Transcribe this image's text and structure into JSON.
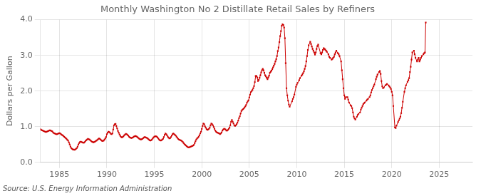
{
  "chart_data": {
    "type": "line",
    "title": "Monthly Washington No 2 Distillate Retail Sales by Refiners",
    "ylabel": "Dollars per Gallon",
    "source": "Source: U.S. Energy Information Administration",
    "color": "#cc0000",
    "marker": "square",
    "grid": true,
    "xlim": [
      1983.0,
      2028.5
    ],
    "xticks": [
      1985,
      1990,
      1995,
      2000,
      2005,
      2010,
      2015,
      2020,
      2025
    ],
    "ylim": [
      0.0,
      4.0
    ],
    "yticks": [
      {
        "value": 0.0,
        "label": "0.0"
      },
      {
        "value": 1.0,
        "label": "1.0"
      },
      {
        "value": 2.0,
        "label": "2.0"
      },
      {
        "value": 3.0,
        "label": "3.0"
      },
      {
        "value": 4.0,
        "label": "4.0"
      }
    ],
    "x": [
      1983.0,
      1983.083,
      1983.167,
      1983.25,
      1983.333,
      1983.417,
      1983.5,
      1983.583,
      1983.667,
      1983.75,
      1983.833,
      1983.917,
      1984.0,
      1984.083,
      1984.167,
      1984.25,
      1984.333,
      1984.417,
      1984.5,
      1984.583,
      1984.667,
      1984.75,
      1984.833,
      1984.917,
      1985.0,
      1985.083,
      1985.167,
      1985.25,
      1985.333,
      1985.417,
      1985.5,
      1985.583,
      1985.667,
      1985.75,
      1985.833,
      1985.917,
      1986.0,
      1986.083,
      1986.167,
      1986.25,
      1986.333,
      1986.417,
      1986.5,
      1986.583,
      1986.667,
      1986.75,
      1986.833,
      1986.917,
      1987.0,
      1987.083,
      1987.167,
      1987.25,
      1987.333,
      1987.417,
      1987.5,
      1987.583,
      1987.667,
      1987.75,
      1987.833,
      1987.917,
      1988.0,
      1988.083,
      1988.167,
      1988.25,
      1988.333,
      1988.417,
      1988.5,
      1988.583,
      1988.667,
      1988.75,
      1988.833,
      1988.917,
      1989.0,
      1989.083,
      1989.167,
      1989.25,
      1989.333,
      1989.417,
      1989.5,
      1989.583,
      1989.667,
      1989.75,
      1989.833,
      1989.917,
      1990.0,
      1990.083,
      1990.167,
      1990.25,
      1990.333,
      1990.417,
      1990.5,
      1990.583,
      1990.667,
      1990.75,
      1990.833,
      1990.917,
      1991.0,
      1991.083,
      1991.167,
      1991.25,
      1991.333,
      1991.417,
      1991.5,
      1991.583,
      1991.667,
      1991.75,
      1991.833,
      1991.917,
      1992.0,
      1992.083,
      1992.167,
      1992.25,
      1992.333,
      1992.417,
      1992.5,
      1992.583,
      1992.667,
      1992.75,
      1992.833,
      1992.917,
      1993.0,
      1993.083,
      1993.167,
      1993.25,
      1993.333,
      1993.417,
      1993.5,
      1993.583,
      1993.667,
      1993.75,
      1993.833,
      1993.917,
      1994.0,
      1994.083,
      1994.167,
      1994.25,
      1994.333,
      1994.417,
      1994.5,
      1994.583,
      1994.667,
      1994.75,
      1994.833,
      1994.917,
      1995.0,
      1995.083,
      1995.167,
      1995.25,
      1995.333,
      1995.417,
      1995.5,
      1995.583,
      1995.667,
      1995.75,
      1995.833,
      1995.917,
      1996.0,
      1996.083,
      1996.167,
      1996.25,
      1996.333,
      1996.417,
      1996.5,
      1996.583,
      1996.667,
      1996.75,
      1996.833,
      1996.917,
      1997.0,
      1997.083,
      1997.167,
      1997.25,
      1997.333,
      1997.417,
      1997.5,
      1997.583,
      1997.667,
      1997.75,
      1997.833,
      1997.917,
      1998.0,
      1998.083,
      1998.167,
      1998.25,
      1998.333,
      1998.417,
      1998.5,
      1998.583,
      1998.667,
      1998.75,
      1998.833,
      1998.917,
      1999.0,
      1999.083,
      1999.167,
      1999.25,
      1999.333,
      1999.417,
      1999.5,
      1999.583,
      1999.667,
      1999.75,
      1999.833,
      1999.917,
      2000.0,
      2000.083,
      2000.167,
      2000.25,
      2000.333,
      2000.417,
      2000.5,
      2000.583,
      2000.667,
      2000.75,
      2000.833,
      2000.917,
      2001.0,
      2001.083,
      2001.167,
      2001.25,
      2001.333,
      2001.417,
      2001.5,
      2001.583,
      2001.667,
      2001.75,
      2001.833,
      2001.917,
      2002.0,
      2002.083,
      2002.167,
      2002.25,
      2002.333,
      2002.417,
      2002.5,
      2002.583,
      2002.667,
      2002.75,
      2002.833,
      2002.917,
      2003.0,
      2003.083,
      2003.167,
      2003.25,
      2003.333,
      2003.417,
      2003.5,
      2003.583,
      2003.667,
      2003.75,
      2003.833,
      2003.917,
      2004.0,
      2004.083,
      2004.167,
      2004.25,
      2004.333,
      2004.417,
      2004.5,
      2004.583,
      2004.667,
      2004.75,
      2004.833,
      2004.917,
      2005.0,
      2005.083,
      2005.167,
      2005.25,
      2005.333,
      2005.417,
      2005.5,
      2005.583,
      2005.667,
      2005.75,
      2005.833,
      2005.917,
      2006.0,
      2006.083,
      2006.167,
      2006.25,
      2006.333,
      2006.417,
      2006.5,
      2006.583,
      2006.667,
      2006.75,
      2006.833,
      2006.917,
      2007.0,
      2007.083,
      2007.167,
      2007.25,
      2007.333,
      2007.417,
      2007.5,
      2007.583,
      2007.667,
      2007.75,
      2007.833,
      2007.917,
      2008.0,
      2008.083,
      2008.167,
      2008.25,
      2008.333,
      2008.417,
      2008.5,
      2008.583,
      2008.667,
      2008.75,
      2008.833,
      2008.917,
      2009.0,
      2009.083,
      2009.167,
      2009.25,
      2009.5,
      2009.583,
      2009.667,
      2009.75,
      2009.917,
      2010.0,
      2010.083,
      2010.25,
      2010.333,
      2010.5,
      2010.583,
      2010.667,
      2010.75,
      2010.833,
      2010.917,
      2011.0,
      2011.083,
      2011.167,
      2011.25,
      2011.417,
      2011.5,
      2011.583,
      2011.667,
      2011.75,
      2011.833,
      2011.917,
      2012.0,
      2012.083,
      2012.167,
      2012.25,
      2012.5,
      2012.583,
      2012.667,
      2012.75,
      2012.833,
      2012.917,
      2013.0,
      2013.083,
      2013.167,
      2013.333,
      2013.417,
      2013.5,
      2013.667,
      2013.75,
      2013.833,
      2013.917,
      2014.0,
      2014.083,
      2014.167,
      2014.333,
      2014.417,
      2014.5,
      2014.667,
      2014.75,
      2014.833,
      2014.917,
      2015.0,
      2015.083,
      2015.167,
      2015.333,
      2015.417,
      2015.5,
      2015.667,
      2015.75,
      2015.833,
      2015.917,
      2016.0,
      2016.083,
      2016.167,
      2016.333,
      2016.417,
      2016.5,
      2016.667,
      2016.75,
      2016.833,
      2016.917,
      2017.0,
      2017.083,
      2017.167,
      2017.333,
      2017.417,
      2017.5,
      2017.667,
      2017.75,
      2017.833,
      2017.917,
      2018.0,
      2018.083,
      2018.167,
      2018.333,
      2018.417,
      2018.5,
      2018.667,
      2018.75,
      2018.833,
      2018.917,
      2019.0,
      2019.083,
      2019.167,
      2019.333,
      2019.417,
      2019.5,
      2019.667,
      2019.75,
      2019.833,
      2019.917,
      2020.0,
      2020.083,
      2020.167,
      2020.333,
      2020.417,
      2020.5,
      2020.667,
      2020.75,
      2020.833,
      2020.917,
      2021.0,
      2021.083,
      2021.167,
      2021.333,
      2021.417,
      2021.5,
      2021.667,
      2021.75,
      2021.833,
      2021.917,
      2022.0,
      2022.083,
      2022.167,
      2022.333,
      2022.417,
      2022.5,
      2022.667,
      2022.75,
      2022.833,
      2022.917,
      2023.0,
      2023.083,
      2023.167,
      2023.333,
      2023.417,
      2023.5,
      2023.583
    ],
    "values": [
      0.93,
      0.91,
      0.9,
      0.89,
      0.88,
      0.87,
      0.86,
      0.85,
      0.86,
      0.87,
      0.88,
      0.89,
      0.9,
      0.89,
      0.88,
      0.87,
      0.84,
      0.82,
      0.81,
      0.8,
      0.79,
      0.79,
      0.8,
      0.81,
      0.82,
      0.81,
      0.79,
      0.77,
      0.76,
      0.74,
      0.72,
      0.7,
      0.68,
      0.66,
      0.63,
      0.61,
      0.56,
      0.5,
      0.44,
      0.4,
      0.38,
      0.36,
      0.36,
      0.35,
      0.36,
      0.38,
      0.4,
      0.44,
      0.5,
      0.54,
      0.57,
      0.58,
      0.57,
      0.56,
      0.55,
      0.55,
      0.57,
      0.6,
      0.62,
      0.64,
      0.66,
      0.65,
      0.64,
      0.62,
      0.6,
      0.58,
      0.57,
      0.56,
      0.57,
      0.58,
      0.6,
      0.61,
      0.63,
      0.65,
      0.67,
      0.66,
      0.64,
      0.62,
      0.6,
      0.6,
      0.61,
      0.64,
      0.67,
      0.71,
      0.79,
      0.83,
      0.86,
      0.85,
      0.83,
      0.8,
      0.79,
      0.81,
      0.92,
      1.04,
      1.07,
      1.08,
      1.02,
      0.95,
      0.88,
      0.83,
      0.78,
      0.74,
      0.71,
      0.7,
      0.71,
      0.73,
      0.76,
      0.78,
      0.8,
      0.79,
      0.77,
      0.75,
      0.72,
      0.7,
      0.69,
      0.68,
      0.69,
      0.7,
      0.72,
      0.73,
      0.74,
      0.73,
      0.72,
      0.7,
      0.68,
      0.66,
      0.65,
      0.64,
      0.65,
      0.66,
      0.68,
      0.7,
      0.71,
      0.7,
      0.69,
      0.68,
      0.66,
      0.64,
      0.62,
      0.61,
      0.62,
      0.64,
      0.67,
      0.7,
      0.72,
      0.73,
      0.73,
      0.72,
      0.7,
      0.67,
      0.64,
      0.62,
      0.61,
      0.62,
      0.64,
      0.66,
      0.71,
      0.77,
      0.81,
      0.79,
      0.76,
      0.72,
      0.69,
      0.67,
      0.68,
      0.71,
      0.75,
      0.79,
      0.81,
      0.79,
      0.77,
      0.75,
      0.72,
      0.69,
      0.66,
      0.64,
      0.63,
      0.62,
      0.61,
      0.59,
      0.57,
      0.54,
      0.51,
      0.49,
      0.47,
      0.45,
      0.43,
      0.42,
      0.42,
      0.43,
      0.44,
      0.45,
      0.46,
      0.47,
      0.49,
      0.54,
      0.59,
      0.64,
      0.67,
      0.69,
      0.72,
      0.76,
      0.81,
      0.86,
      0.94,
      1.02,
      1.09,
      1.07,
      1.01,
      0.97,
      0.93,
      0.91,
      0.92,
      0.94,
      0.97,
      1.04,
      1.09,
      1.07,
      1.04,
      0.99,
      0.94,
      0.89,
      0.86,
      0.84,
      0.83,
      0.82,
      0.81,
      0.79,
      0.81,
      0.84,
      0.89,
      0.92,
      0.94,
      0.94,
      0.92,
      0.89,
      0.89,
      0.91,
      0.94,
      0.97,
      1.04,
      1.14,
      1.19,
      1.14,
      1.09,
      1.04,
      1.02,
      1.04,
      1.07,
      1.11,
      1.17,
      1.24,
      1.29,
      1.37,
      1.44,
      1.47,
      1.49,
      1.51,
      1.54,
      1.57,
      1.61,
      1.67,
      1.71,
      1.74,
      1.82,
      1.9,
      1.97,
      2.0,
      2.03,
      2.08,
      2.14,
      2.25,
      2.42,
      2.42,
      2.38,
      2.28,
      2.31,
      2.37,
      2.44,
      2.52,
      2.58,
      2.62,
      2.58,
      2.51,
      2.44,
      2.41,
      2.37,
      2.33,
      2.38,
      2.43,
      2.51,
      2.54,
      2.57,
      2.61,
      2.66,
      2.71,
      2.76,
      2.83,
      2.89,
      2.98,
      3.12,
      3.22,
      3.37,
      3.54,
      3.68,
      3.83,
      3.87,
      3.85,
      3.78,
      3.48,
      2.78,
      2.08,
      1.88,
      1.73,
      1.62,
      1.56,
      1.71,
      1.78,
      1.83,
      1.9,
      2.12,
      2.18,
      2.23,
      2.3,
      2.36,
      2.43,
      2.46,
      2.5,
      2.55,
      2.62,
      2.7,
      2.83,
      2.98,
      3.15,
      3.28,
      3.38,
      3.32,
      3.25,
      3.18,
      3.13,
      3.08,
      3.02,
      3.08,
      3.18,
      3.26,
      3.3,
      3.06,
      3.03,
      3.08,
      3.15,
      3.2,
      3.18,
      3.16,
      3.13,
      3.1,
      3.03,
      2.96,
      2.93,
      2.88,
      2.9,
      2.93,
      2.96,
      3.03,
      3.08,
      3.13,
      3.06,
      3.03,
      2.98,
      2.83,
      2.58,
      2.33,
      2.08,
      1.88,
      1.78,
      1.83,
      1.83,
      1.76,
      1.68,
      1.6,
      1.58,
      1.52,
      1.4,
      1.28,
      1.23,
      1.2,
      1.28,
      1.33,
      1.36,
      1.4,
      1.48,
      1.53,
      1.58,
      1.63,
      1.66,
      1.68,
      1.73,
      1.76,
      1.78,
      1.83,
      1.88,
      1.96,
      2.03,
      2.08,
      2.13,
      2.18,
      2.33,
      2.4,
      2.46,
      2.53,
      2.56,
      2.48,
      2.28,
      2.13,
      2.08,
      2.1,
      2.16,
      2.18,
      2.2,
      2.16,
      2.13,
      2.1,
      2.06,
      1.98,
      1.88,
      1.58,
      0.98,
      0.96,
      1.03,
      1.13,
      1.18,
      1.23,
      1.28,
      1.38,
      1.53,
      1.7,
      1.98,
      2.08,
      2.16,
      2.26,
      2.3,
      2.36,
      2.53,
      2.68,
      2.88,
      3.08,
      3.13,
      3.03,
      2.93,
      2.83,
      2.88,
      2.93,
      2.83,
      2.88,
      2.93,
      2.98,
      3.03,
      3.06,
      3.08,
      3.92
    ]
  }
}
